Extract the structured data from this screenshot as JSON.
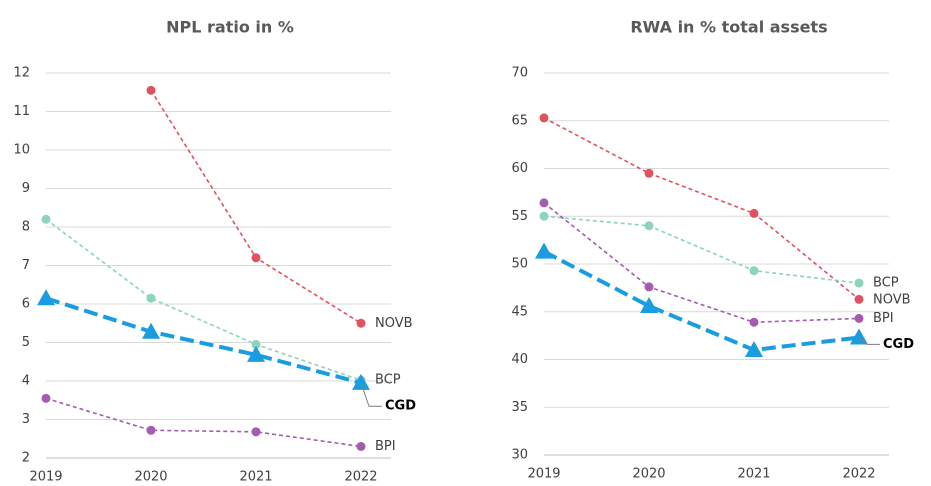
{
  "chart_data": [
    {
      "type": "line",
      "title": "NPL ratio in %",
      "categories": [
        "2019",
        "2020",
        "2021",
        "2022"
      ],
      "ylim": [
        2,
        12
      ],
      "yticks": [
        2,
        3,
        4,
        5,
        6,
        7,
        8,
        9,
        10,
        11,
        12
      ],
      "grid": true,
      "series": [
        {
          "name": "NOVB",
          "color": "#e05260",
          "marker": "circle",
          "values": [
            null,
            11.55,
            7.2,
            5.5
          ]
        },
        {
          "name": "BCP",
          "color": "#8dd3c0",
          "marker": "circle",
          "values": [
            8.2,
            6.15,
            4.95,
            4.02
          ]
        },
        {
          "name": "CGD",
          "color": "#1a9de0",
          "marker": "triangle",
          "values": [
            6.15,
            5.28,
            4.68,
            3.95
          ]
        },
        {
          "name": "BPI",
          "color": "#a35cb0",
          "marker": "circle",
          "values": [
            3.55,
            2.72,
            2.68,
            2.3
          ]
        }
      ]
    },
    {
      "type": "line",
      "title": "RWA in % total assets",
      "categories": [
        "2019",
        "2020",
        "2021",
        "2022"
      ],
      "ylim": [
        30,
        70
      ],
      "yticks": [
        30,
        35,
        40,
        45,
        50,
        55,
        60,
        65,
        70
      ],
      "grid": true,
      "series": [
        {
          "name": "NOVB",
          "color": "#e05260",
          "marker": "circle",
          "values": [
            65.3,
            59.5,
            55.3,
            46.3
          ]
        },
        {
          "name": "BCP",
          "color": "#8dd3c0",
          "marker": "circle",
          "values": [
            55,
            54,
            49.3,
            48
          ]
        },
        {
          "name": "BPI",
          "color": "#a35cb0",
          "marker": "circle",
          "values": [
            56.4,
            47.6,
            43.9,
            44.3
          ]
        },
        {
          "name": "CGD",
          "color": "#1a9de0",
          "marker": "triangle",
          "values": [
            51.3,
            45.6,
            41,
            42.3
          ]
        }
      ]
    }
  ]
}
